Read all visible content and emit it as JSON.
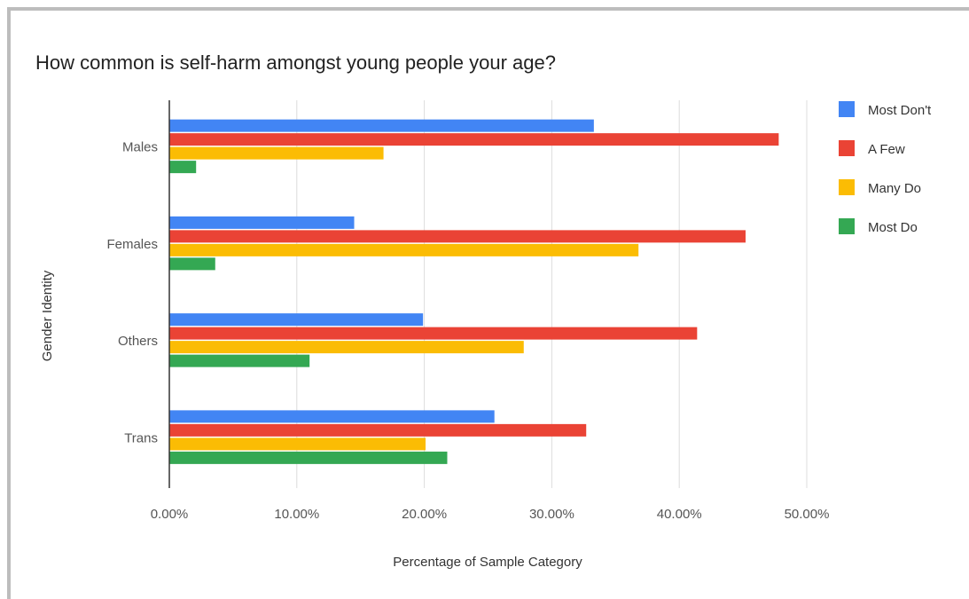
{
  "chart_data": {
    "type": "bar",
    "orientation": "horizontal",
    "title": "How common is self-harm amongst young people your age?",
    "xlabel": "Percentage of Sample Category",
    "ylabel": "Gender Identity",
    "categories": [
      "Males",
      "Females",
      "Others",
      "Trans"
    ],
    "xlim": [
      0,
      50
    ],
    "x_ticks": [
      "0.00%",
      "10.00%",
      "20.00%",
      "30.00%",
      "40.00%",
      "50.00%"
    ],
    "grid": true,
    "legend_position": "right",
    "series": [
      {
        "name": "Most Don't",
        "color": "#4285f4",
        "values": [
          33.3,
          14.5,
          19.9,
          25.5
        ]
      },
      {
        "name": "A Few",
        "color": "#ea4335",
        "values": [
          47.8,
          45.2,
          41.4,
          32.7
        ]
      },
      {
        "name": "Many Do",
        "color": "#fbbc04",
        "values": [
          16.8,
          36.8,
          27.8,
          20.1
        ]
      },
      {
        "name": "Most Do",
        "color": "#34a853",
        "values": [
          2.1,
          3.6,
          11.0,
          21.8
        ]
      }
    ]
  }
}
